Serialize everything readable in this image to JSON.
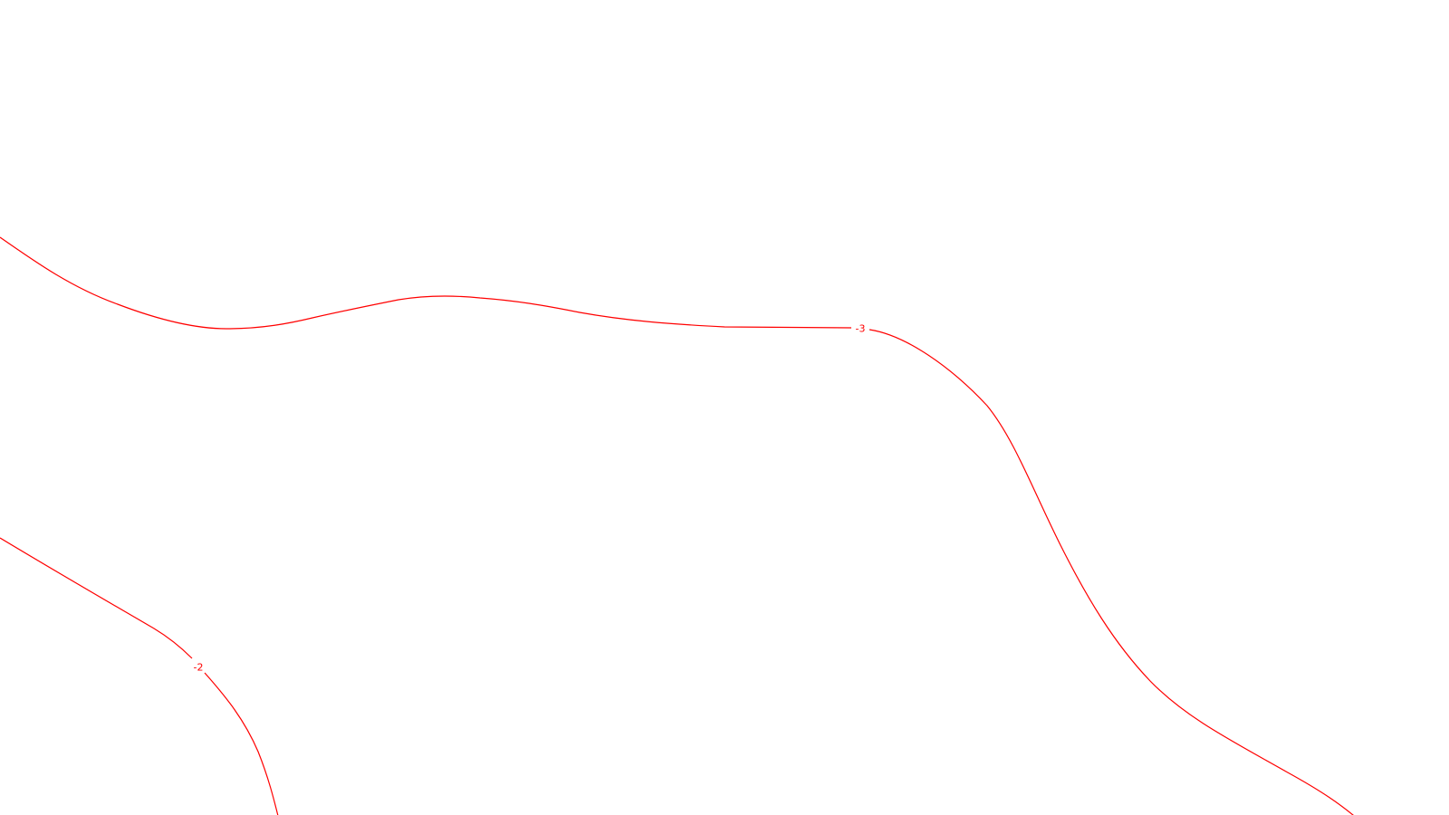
{
  "map": {
    "background": "#ffffff",
    "contour_color": "#ff0000",
    "contours": [
      {
        "id": "contour-minus-3",
        "level_label": "-3"
      },
      {
        "id": "contour-minus-2",
        "level_label": "-2"
      }
    ]
  }
}
